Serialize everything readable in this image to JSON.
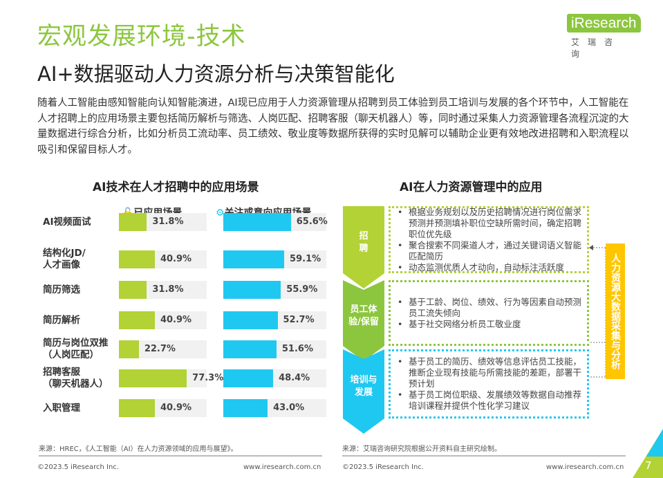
{
  "header": {
    "title": "宏观发展环境-技术",
    "subtitle": "AI+数据驱动人力资源分析与决策智能化",
    "logo_brand": "iResearch",
    "logo_cn": "艾瑞咨询"
  },
  "intro": "随着人工智能由感知智能向认知智能演进，AI现已应用于人力资源管理从招聘到员工体验到员工培训与发展的各个环节中，人工智能在人才招聘上的应用场景主要包括简历解析与筛选、人岗匹配、招聘客服（聊天机器人）等，同时通过采集人力资源管理各流程沉淀的大量数据进行综合分析，比如分析员工流动率、员工绩效、敬业度等数据所获得的实时见解可以辅助企业更有效地改进招聘和入职流程以吸引和保留目标人才。",
  "left": {
    "title": "AI技术在人才招聘中的应用场景",
    "legend_applied": "已应用场景",
    "legend_interested": "关注或意向应用场景",
    "icon_applied": "unlock-icon",
    "icon_interested": "gears-icon",
    "colors": {
      "applied": "#b2d235",
      "interested": "#1fc8f0",
      "track": "#f1f1f1"
    }
  },
  "chart_data": {
    "type": "bar",
    "orientation": "horizontal",
    "categories": [
      "AI视频面试",
      "结构化JD/人才画像",
      "简历筛选",
      "简历解析",
      "简历与岗位双推（人岗匹配）",
      "招聘客服（聊天机器人）",
      "入职管理"
    ],
    "category_lines": [
      [
        "AI视频面试"
      ],
      [
        "结构化JD/",
        "人才画像"
      ],
      [
        "简历筛选"
      ],
      [
        "简历解析"
      ],
      [
        "简历与岗位双推",
        "（人岗匹配）"
      ],
      [
        "招聘客服",
        "（聊天机器人）"
      ],
      [
        "入职管理"
      ]
    ],
    "series": [
      {
        "name": "已应用场景",
        "values": [
          31.8,
          40.9,
          31.8,
          40.9,
          22.7,
          77.3,
          40.9
        ],
        "labels": [
          "31.8%",
          "40.9%",
          "31.8%",
          "40.9%",
          "22.7%",
          "77.3%",
          "40.9%"
        ]
      },
      {
        "name": "关注或意向应用场景",
        "values": [
          65.6,
          59.1,
          55.9,
          52.7,
          51.6,
          48.4,
          43.0
        ],
        "labels": [
          "65.6%",
          "59.1%",
          "55.9%",
          "52.7%",
          "51.6%",
          "48.4%",
          "43.0%"
        ]
      }
    ],
    "xlim": [
      0,
      100
    ]
  },
  "right": {
    "title": "AI在人力资源管理中的应用",
    "side_label": "人力资源大数据采集与分析",
    "stages": [
      {
        "label": [
          "招",
          "聘"
        ],
        "color": "#b2d235",
        "items": [
          "根据业务规划以及历史招聘情况进行岗位需求预测并预测填补职位空缺所需时间，确定招聘职位优先级",
          "聚合搜索不同渠道人才，通过关键词语义智能匹配简历",
          "动态监测优质人才动向，自动标注活跃度"
        ]
      },
      {
        "label": [
          "员工体",
          "验/保留"
        ],
        "color": "#8cc63f",
        "items": [
          "基于工龄、岗位、绩效、行为等因素自动预测员工流失倾向",
          "基于社交网络分析员工敬业度"
        ]
      },
      {
        "label": [
          "培训与",
          "发展"
        ],
        "color": "#1fc8f0",
        "items": [
          "基于员工的简历、绩效等信息评估员工技能，推断企业现有技能与所需技能的差距，部署干预计划",
          "基于员工岗位职级、发展绩效等数据自动推荐培训课程并提供个性化学习建议"
        ]
      }
    ]
  },
  "footer": {
    "source_left": "来源：HREC，《人工智能（AI）在人力资源领域的应用与展望》。",
    "source_right": "来源：艾瑞咨询研究院根据公开资料自主研究绘制。",
    "copyright": "©2023.5 iResearch Inc.",
    "url": "www.iresearch.com.cn",
    "page": "7"
  }
}
